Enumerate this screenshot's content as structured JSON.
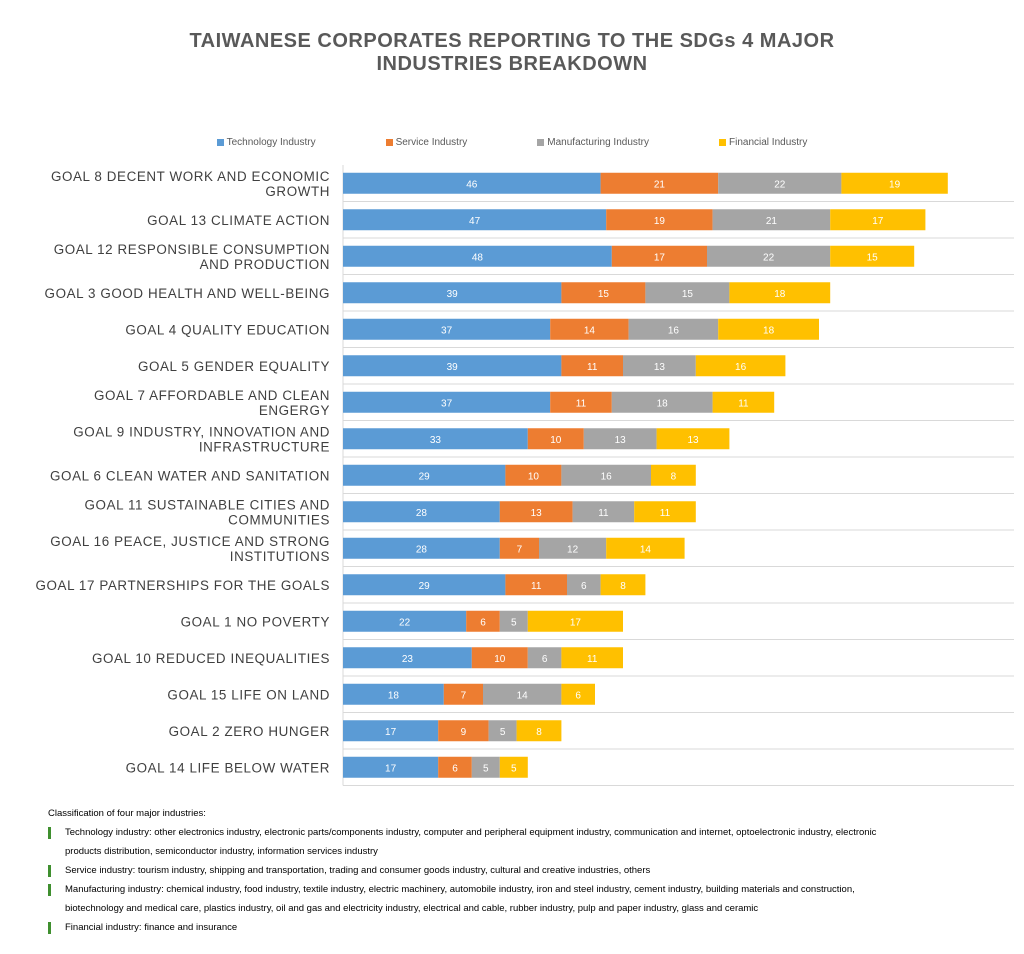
{
  "title_lines": [
    "TAIWANESE CORPORATES REPORTING TO THE SDGs 4 MAJOR",
    "INDUSTRIES BREAKDOWN"
  ],
  "chart_data": {
    "type": "bar",
    "orientation": "horizontal",
    "stacked": true,
    "title": "TAIWANESE CORPORATES REPORTING TO THE SDGs 4 MAJOR INDUSTRIES BREAKDOWN",
    "legend_position": "top",
    "categories": [
      [
        "GOAL 8 DECENT WORK AND ECONOMIC",
        "GROWTH"
      ],
      [
        "GOAL 13 CLIMATE ACTION"
      ],
      [
        "GOAL 12 RESPONSIBLE CONSUMPTION",
        "AND PRODUCTION"
      ],
      [
        "GOAL 3 GOOD HEALTH AND WELL-BEING"
      ],
      [
        "GOAL 4 QUALITY EDUCATION"
      ],
      [
        "GOAL 5 GENDER EQUALITY"
      ],
      [
        "GOAL 7 AFFORDABLE AND CLEAN",
        "ENGERGY"
      ],
      [
        "GOAL 9 INDUSTRY, INNOVATION AND",
        "INFRASTRUCTURE"
      ],
      [
        "GOAL 6 CLEAN WATER AND SANITATION"
      ],
      [
        "GOAL 11 SUSTAINABLE CITIES AND",
        "COMMUNITIES"
      ],
      [
        "GOAL 16 PEACE, JUSTICE AND STRONG",
        "INSTITUTIONS"
      ],
      [
        "GOAL 17 PARTNERSHIPS FOR THE GOALS"
      ],
      [
        "GOAL 1 NO POVERTY"
      ],
      [
        "GOAL 10 REDUCED INEQUALITIES"
      ],
      [
        "GOAL 15 LIFE ON LAND"
      ],
      [
        "GOAL 2 ZERO HUNGER"
      ],
      [
        "GOAL 14 LIFE BELOW WATER"
      ]
    ],
    "series": [
      {
        "name": "Technology Industry",
        "color": "#5b9bd5",
        "values": [
          46,
          47,
          48,
          39,
          37,
          39,
          37,
          33,
          29,
          28,
          28,
          29,
          22,
          23,
          18,
          17,
          17
        ]
      },
      {
        "name": "Service Industry",
        "color": "#ed7d31",
        "values": [
          21,
          19,
          17,
          15,
          14,
          11,
          11,
          10,
          10,
          13,
          7,
          11,
          6,
          10,
          7,
          9,
          6
        ]
      },
      {
        "name": "Manufacturing Industry",
        "color": "#a5a5a5",
        "values": [
          22,
          21,
          22,
          15,
          16,
          13,
          18,
          13,
          16,
          11,
          12,
          6,
          5,
          6,
          14,
          5,
          5
        ]
      },
      {
        "name": "Financial Industry",
        "color": "#ffc000",
        "values": [
          19,
          17,
          15,
          18,
          18,
          16,
          11,
          13,
          8,
          11,
          14,
          8,
          17,
          11,
          6,
          8,
          5
        ]
      }
    ],
    "xlim": [
      0,
      120
    ],
    "grid": "horizontal separators"
  },
  "notes": {
    "title": "Classification of four major industries:",
    "items": [
      [
        "Technology industry: other electronics industry, electronic parts/components industry, computer and peripheral equipment industry, communication and internet, optoelectronic industry, electronic",
        "products distribution, semiconductor industry, information services industry"
      ],
      [
        "Service industry: tourism industry, shipping and transportation, trading and consumer goods industry, cultural and creative industries, others"
      ],
      [
        "Manufacturing industry: chemical industry, food industry, textile industry, electric machinery, automobile industry, iron and steel industry, cement industry, building materials and construction,",
        "biotechnology and medical care, plastics industry, oil and gas and electricity industry, electrical and cable, rubber industry, pulp and paper industry, glass and ceramic"
      ],
      [
        "Financial industry: finance and insurance"
      ]
    ]
  }
}
